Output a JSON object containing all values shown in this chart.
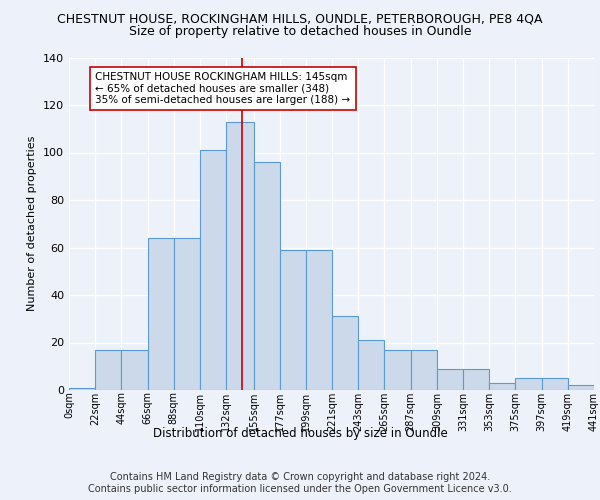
{
  "title_line1": "CHESTNUT HOUSE, ROCKINGHAM HILLS, OUNDLE, PETERBOROUGH, PE8 4QA",
  "title_line2": "Size of property relative to detached houses in Oundle",
  "xlabel": "Distribution of detached houses by size in Oundle",
  "ylabel": "Number of detached properties",
  "footer": "Contains HM Land Registry data © Crown copyright and database right 2024.\nContains public sector information licensed under the Open Government Licence v3.0.",
  "bin_edges": [
    0,
    22,
    44,
    66,
    88,
    110,
    132,
    155,
    177,
    199,
    221,
    243,
    265,
    287,
    309,
    331,
    353,
    375,
    397,
    419,
    441
  ],
  "bar_heights": [
    1,
    17,
    17,
    64,
    64,
    101,
    113,
    96,
    59,
    59,
    31,
    21,
    17,
    17,
    9,
    9,
    3,
    5,
    5,
    2
  ],
  "bar_color": "#ccd9ea",
  "bar_edge_color": "#5b9bd5",
  "red_line_x": 145,
  "annotation_text": "CHESTNUT HOUSE ROCKINGHAM HILLS: 145sqm\n← 65% of detached houses are smaller (348)\n35% of semi-detached houses are larger (188) →",
  "annotation_box_color": "#ffffff",
  "annotation_box_edge": "#cc0000",
  "ylim": [
    0,
    140
  ],
  "yticks": [
    0,
    20,
    40,
    60,
    80,
    100,
    120,
    140
  ],
  "xlim": [
    0,
    441
  ],
  "bg_color": "#edf2fa",
  "grid_color": "#ffffff",
  "title_fontsize": 9.5,
  "subtitle_fontsize": 9.5
}
